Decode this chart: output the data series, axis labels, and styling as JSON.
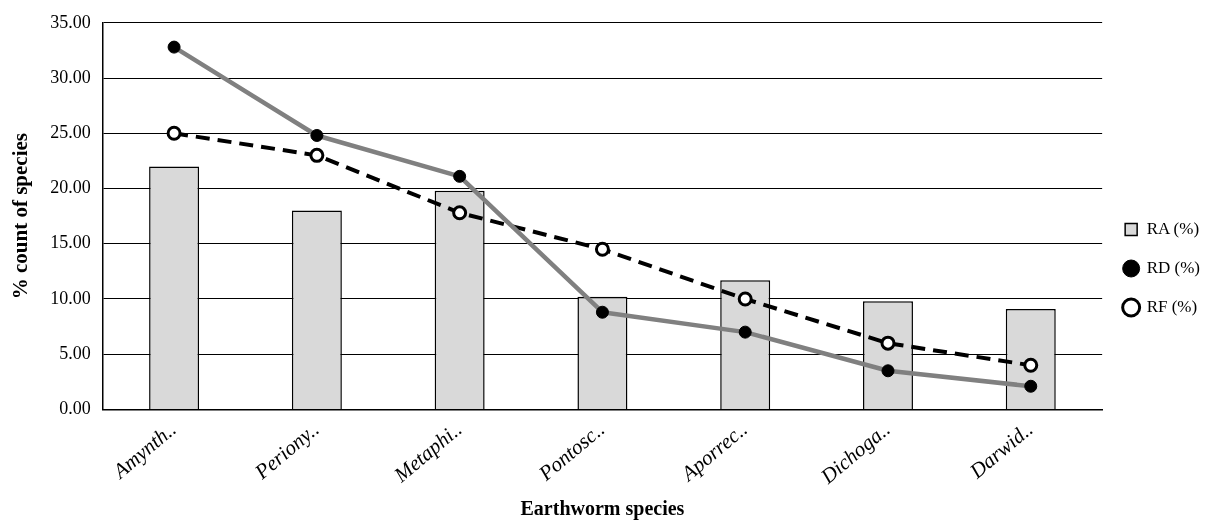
{
  "chart_data": {
    "type": "bar",
    "xlabel": "Earthworm species",
    "ylabel": "% count of species",
    "categories": [
      "Amynth..",
      "Periony..",
      "Metaphi..",
      "Pontosc..",
      "Aporrec..",
      "Dichoga..",
      "Darwid.."
    ],
    "series": [
      {
        "name": "RA (%)",
        "color": "#d9d9d9",
        "values": [
          22.0,
          18.0,
          19.8,
          10.2,
          11.7,
          9.8,
          9.1
        ]
      },
      {
        "name": "RD (%)",
        "type": "line",
        "color": "#808080",
        "marker": "circle",
        "line_style": "solid",
        "values": [
          32.8,
          24.8,
          21.1,
          8.8,
          7.0,
          3.5,
          2.1
        ]
      },
      {
        "name": "RF (%)",
        "type": "line",
        "color": "#000000",
        "marker": "circle",
        "line_style": "dashed",
        "values": [
          25.0,
          23.0,
          17.8,
          14.5,
          10.0,
          6.0,
          4.0
        ]
      }
    ],
    "ylim": [
      0,
      35
    ],
    "yticks": [
      {
        "value": 0,
        "label": "0.00"
      },
      {
        "value": 5,
        "label": "5.00"
      },
      {
        "value": 10,
        "label": "10.00"
      },
      {
        "value": 15,
        "label": "15.00"
      },
      {
        "value": 20,
        "label": "20.00"
      },
      {
        "value": 25,
        "label": "25.00"
      },
      {
        "value": 30,
        "label": "30.00"
      },
      {
        "value": 35,
        "label": "35.00"
      }
    ],
    "grid": "y",
    "legend": "right"
  }
}
